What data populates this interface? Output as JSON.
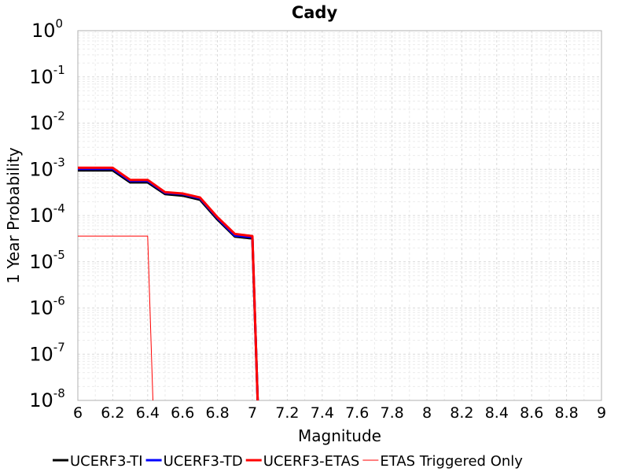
{
  "chart_data": {
    "type": "line",
    "title": "Cady",
    "xlabel": "Magnitude",
    "ylabel": "1 Year Probability",
    "xlim": [
      6,
      9
    ],
    "ylim": [
      1e-08,
      1
    ],
    "yscale": "log",
    "grid": true,
    "legend_position": "bottom",
    "x_ticks": [
      "6",
      "6.2",
      "6.4",
      "6.6",
      "6.8",
      "7",
      "7.2",
      "7.4",
      "7.6",
      "7.8",
      "8",
      "8.2",
      "8.4",
      "8.6",
      "8.8",
      "9"
    ],
    "y_ticks": [
      {
        "value": 1,
        "base": "10",
        "exp": "0"
      },
      {
        "value": 0.1,
        "base": "10",
        "exp": "-1"
      },
      {
        "value": 0.01,
        "base": "10",
        "exp": "-2"
      },
      {
        "value": 0.001,
        "base": "10",
        "exp": "-3"
      },
      {
        "value": 0.0001,
        "base": "10",
        "exp": "-4"
      },
      {
        "value": 1e-05,
        "base": "10",
        "exp": "-5"
      },
      {
        "value": 1e-06,
        "base": "10",
        "exp": "-6"
      },
      {
        "value": 1e-07,
        "base": "10",
        "exp": "-7"
      },
      {
        "value": 1e-08,
        "base": "10",
        "exp": "-8"
      }
    ],
    "series": [
      {
        "name": "UCERF3-TI",
        "color": "#000000",
        "width": 3,
        "x": [
          6.0,
          6.1,
          6.2,
          6.3,
          6.4,
          6.5,
          6.6,
          6.7,
          6.8,
          6.9,
          7.0,
          7.03
        ],
        "y": [
          0.00095,
          0.00095,
          0.00095,
          0.00052,
          0.00052,
          0.00029,
          0.00027,
          0.00022,
          8.2e-05,
          3.5e-05,
          3.2e-05,
          1e-08
        ]
      },
      {
        "name": "UCERF3-TD",
        "color": "#0000ff",
        "width": 3,
        "x": [
          6.0,
          6.1,
          6.2,
          6.3,
          6.4,
          6.5,
          6.6,
          6.7,
          6.8,
          6.9,
          7.0,
          7.03
        ],
        "y": [
          0.00102,
          0.00102,
          0.00102,
          0.00056,
          0.00056,
          0.00031,
          0.00029,
          0.000235,
          8.8e-05,
          3.7e-05,
          3.4e-05,
          1e-08
        ]
      },
      {
        "name": "UCERF3-ETAS",
        "color": "#ff0000",
        "width": 3,
        "x": [
          6.0,
          6.1,
          6.2,
          6.3,
          6.4,
          6.5,
          6.6,
          6.7,
          6.8,
          6.9,
          7.0,
          7.03
        ],
        "y": [
          0.00108,
          0.00108,
          0.00108,
          0.00059,
          0.00059,
          0.00032,
          0.0003,
          0.000245,
          9.2e-05,
          4e-05,
          3.6e-05,
          1e-08
        ]
      },
      {
        "name": "ETAS Triggered Only",
        "color": "#ff0000",
        "width": 1,
        "x": [
          6.0,
          6.1,
          6.2,
          6.3,
          6.4,
          6.43
        ],
        "y": [
          3.6e-05,
          3.6e-05,
          3.6e-05,
          3.6e-05,
          3.6e-05,
          1e-08
        ]
      }
    ]
  }
}
